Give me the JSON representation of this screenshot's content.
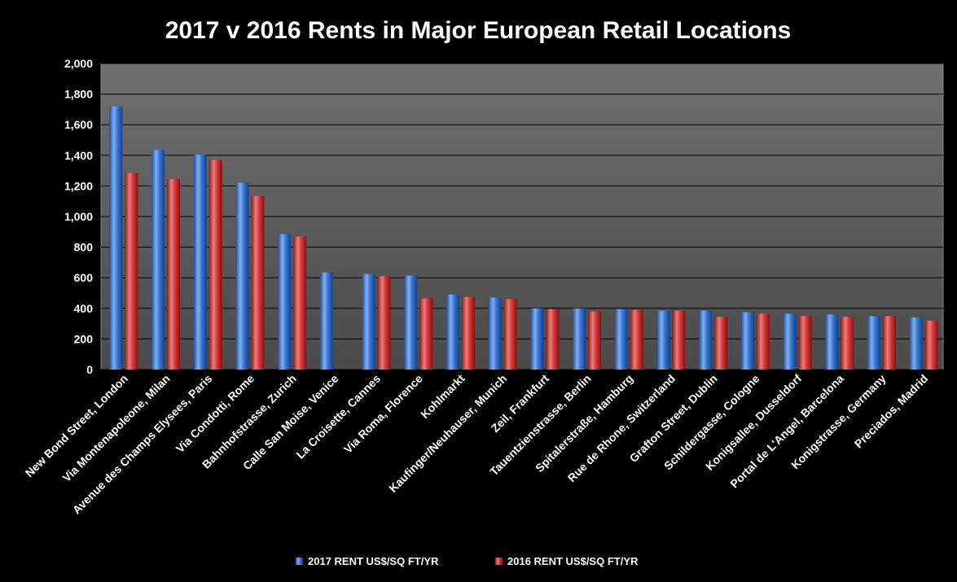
{
  "chart_data": {
    "type": "bar",
    "title": "2017 v 2016 Rents in Major European Retail Locations",
    "xlabel": "",
    "ylabel": "",
    "ylim": [
      0,
      2000
    ],
    "yticks": [
      "0",
      "200",
      "400",
      "600",
      "800",
      "1,000",
      "1,200",
      "1,400",
      "1,600",
      "1,800",
      "2,000"
    ],
    "grid": true,
    "legend_position": "bottom",
    "categories": [
      "New Bond Street, London",
      "Via Montenapoleone, Milan",
      "Avenue des Champs Elysees, Paris",
      "Via Condotti, Rome",
      "Bahnhofstrasse, Zurich",
      "Calle San Moise,  Venice",
      "La Croisette, Cannes",
      "Via Roma, Florence",
      "Kohlmarkt",
      "Kaufinger/Neuhauser, Munich",
      "Zeil, Frankfurt",
      "Tauentzienstrasse, Berlin",
      "Spitalerstraße, Hamburg",
      "Rue de Rhone, Switzerland",
      "Grafton Street, Dublin",
      "Schildergasse, Cologne",
      "Konigsallee, Dusseldorf",
      "Portal de L'Angel, Barcelona",
      "Konigstrasse, Germany",
      "Preciados, Madrid"
    ],
    "series": [
      {
        "name": "2017 RENT US$/SQ FT/YR",
        "color": "#3a78d6",
        "values": [
          1720,
          1435,
          1405,
          1220,
          885,
          635,
          625,
          615,
          490,
          470,
          400,
          400,
          395,
          385,
          385,
          375,
          365,
          360,
          350,
          340
        ]
      },
      {
        "name": "2016 RENT US$/SQ FT/YR",
        "color": "#d93a3a",
        "values": [
          1285,
          1245,
          1370,
          1135,
          870,
          null,
          610,
          465,
          475,
          460,
          395,
          380,
          390,
          385,
          345,
          365,
          350,
          345,
          350,
          320
        ]
      }
    ]
  }
}
